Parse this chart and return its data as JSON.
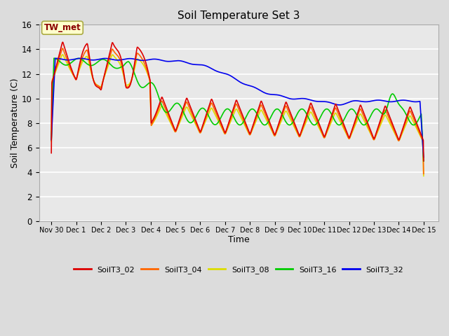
{
  "title": "Soil Temperature Set 3",
  "xlabel": "Time",
  "ylabel": "Soil Temperature (C)",
  "ylim": [
    0,
    16
  ],
  "yticks": [
    0,
    2,
    4,
    6,
    8,
    10,
    12,
    14,
    16
  ],
  "bg_color": "#dcdcdc",
  "plot_bg_color": "#e8e8e8",
  "annotation_text": "TW_met",
  "annotation_color": "#8b0000",
  "annotation_bg": "#ffffcc",
  "series_colors": {
    "SoilT3_02": "#dd0000",
    "SoilT3_04": "#ff6600",
    "SoilT3_08": "#dddd00",
    "SoilT3_16": "#00cc00",
    "SoilT3_32": "#0000ee"
  },
  "line_width": 1.2
}
